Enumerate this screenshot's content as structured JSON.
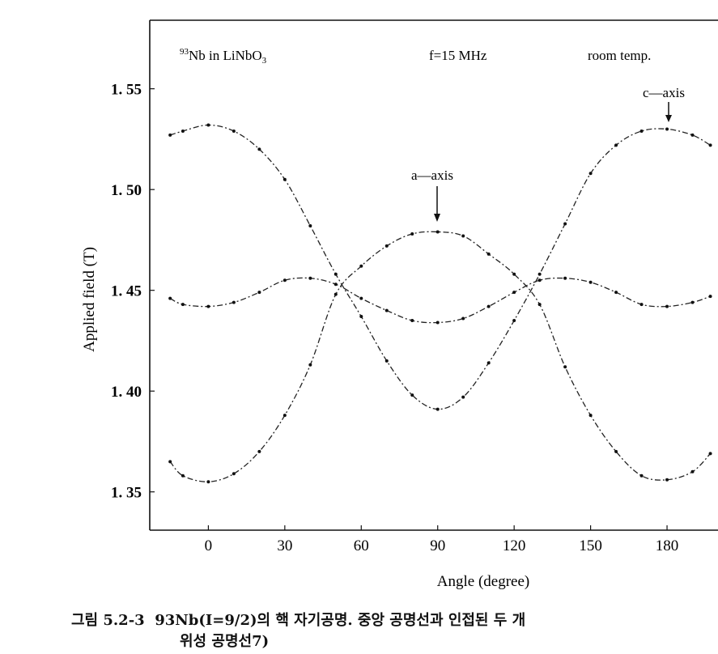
{
  "chart_data": {
    "type": "line",
    "title": "",
    "annotations": {
      "sample": "93Nb in LiNbO3",
      "sample_sup": "93",
      "sample_main": "Nb  in  LiNbO",
      "sample_sub": "3",
      "frequency": "f=15 MHz",
      "temperature": "room temp.",
      "a_axis": "a—axis",
      "c_axis": "c—axis"
    },
    "xlabel": "Angle (degree)",
    "ylabel": "Applied field (T)",
    "xlim": [
      -23,
      200
    ],
    "ylim": [
      1.331,
      1.584
    ],
    "xticks": [
      0,
      30,
      60,
      90,
      120,
      150,
      180
    ],
    "xtick_labels": [
      "0",
      "30",
      "60",
      "90",
      "120",
      "150",
      "180"
    ],
    "yticks": [
      1.35,
      1.4,
      1.45,
      1.5,
      1.55
    ],
    "ytick_labels": [
      "1. 35",
      "1. 40",
      "1. 45",
      "1. 50",
      "1. 55"
    ],
    "grid": false,
    "x": [
      -15,
      -10,
      0,
      10,
      20,
      30,
      40,
      50,
      60,
      70,
      80,
      90,
      100,
      110,
      120,
      130,
      140,
      150,
      160,
      170,
      180,
      190,
      197
    ],
    "series": [
      {
        "name": "outer line (max at 0/180)",
        "values": [
          1.527,
          1.529,
          1.532,
          1.529,
          1.52,
          1.505,
          1.482,
          1.458,
          1.437,
          1.415,
          1.398,
          1.391,
          1.397,
          1.414,
          1.435,
          1.458,
          1.483,
          1.508,
          1.522,
          1.529,
          1.53,
          1.527,
          1.522
        ]
      },
      {
        "name": "outer line (max at 90)",
        "values": [
          1.365,
          1.358,
          1.355,
          1.359,
          1.37,
          1.388,
          1.413,
          1.448,
          1.462,
          1.472,
          1.478,
          1.479,
          1.477,
          1.468,
          1.458,
          1.443,
          1.412,
          1.388,
          1.37,
          1.358,
          1.356,
          1.36,
          1.369
        ]
      },
      {
        "name": "central line",
        "values": [
          1.446,
          1.443,
          1.442,
          1.444,
          1.449,
          1.455,
          1.456,
          1.453,
          1.446,
          1.44,
          1.435,
          1.434,
          1.436,
          1.442,
          1.449,
          1.455,
          1.456,
          1.454,
          1.449,
          1.443,
          1.442,
          1.444,
          1.447
        ]
      }
    ]
  },
  "caption": {
    "label": "그림 5.2-3",
    "line1": "93Nb(I=9/2)의 핵 자기공명. 중앙 공명선과 인접된 두 개",
    "line2": "위성 공명선7)"
  }
}
